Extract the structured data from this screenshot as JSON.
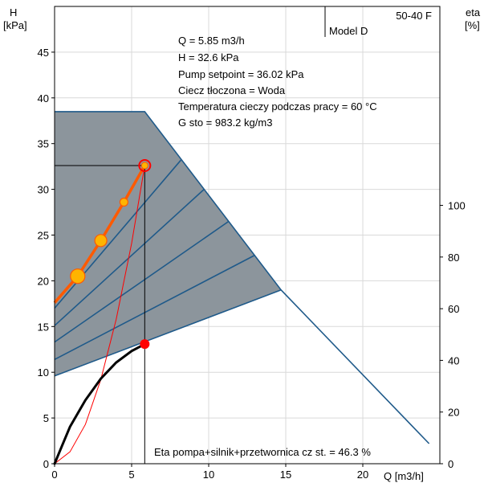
{
  "chart_data": {
    "type": "line",
    "title": "50-40 F",
    "model": "Model D",
    "xlabel": "Q [m3/h]",
    "ylabel_left": "H",
    "ylabel_left_unit": "[kPa]",
    "ylabel_right": "eta",
    "ylabel_right_unit": "[%]",
    "xlim": [
      0,
      25
    ],
    "ylim_left": [
      0,
      50
    ],
    "ylim_right": [
      0,
      177
    ],
    "xticks": [
      0,
      5,
      10,
      15,
      20
    ],
    "yticks_left": [
      0,
      5,
      10,
      15,
      20,
      25,
      30,
      35,
      40,
      45
    ],
    "yticks_right": [
      0,
      20,
      40,
      60,
      80,
      100
    ],
    "info_lines": [
      "Q = 5.85 m3/h",
      "H = 32.6 kPa",
      "Pump setpoint = 36.02 kPa",
      "Ciecz tłoczona = Woda",
      "Temperatura cieczy podczas pracy = 60 °C",
      "G  sto     = 983.2 kg/m3"
    ],
    "efficiency_note": "Eta pompa+silnik+przetwornica cz  st. = 46.3 %",
    "operating_point": {
      "q": 5.85,
      "h": 32.6,
      "eta": 46.3
    },
    "max_curve": [
      [
        0,
        38.5
      ],
      [
        5.85,
        38.5
      ],
      [
        14.7,
        19.0
      ],
      [
        24.3,
        2.2
      ]
    ],
    "min_curve": [
      [
        0,
        9.6
      ],
      [
        14.7,
        19.0
      ]
    ],
    "speed_lines": [
      [
        [
          0,
          11.4
        ],
        [
          13.0,
          22.8
        ]
      ],
      [
        [
          0,
          13.3
        ],
        [
          11.3,
          26.5
        ]
      ],
      [
        [
          0,
          15.1
        ],
        [
          9.7,
          30.0
        ]
      ],
      [
        [
          0,
          17.0
        ],
        [
          8.2,
          33.2
        ]
      ]
    ],
    "control_curve": [
      [
        0,
        17.6
      ],
      [
        1.5,
        20.5
      ],
      [
        3.0,
        24.4
      ],
      [
        4.5,
        28.6
      ],
      [
        5.85,
        32.6
      ]
    ],
    "control_curve_markers": [
      {
        "q": 1.5,
        "h": 20.5,
        "size": "large"
      },
      {
        "q": 3.0,
        "h": 24.4,
        "size": "medium"
      },
      {
        "q": 4.5,
        "h": 28.6,
        "size": "small"
      }
    ],
    "system_curve": [
      [
        0,
        0
      ],
      [
        1,
        1.3
      ],
      [
        2,
        4.3
      ],
      [
        3,
        9.2
      ],
      [
        4,
        15.8
      ],
      [
        5,
        24.1
      ],
      [
        5.85,
        32.6
      ]
    ],
    "efficiency_curve": [
      [
        0,
        0
      ],
      [
        0.5,
        7.2
      ],
      [
        1,
        14.3
      ],
      [
        2,
        24.6
      ],
      [
        3,
        32.9
      ],
      [
        4,
        39.2
      ],
      [
        5,
        43.6
      ],
      [
        5.85,
        46.3
      ]
    ],
    "colors": {
      "region_fill": "#8c959c",
      "envelope": "#1f5a8a",
      "control_curve": "#ff5a00",
      "marker_fill": "#ffb400",
      "system_curve": "#ff0000",
      "efficiency_curve": "#000000",
      "efficiency_point": "#ff0000"
    }
  }
}
